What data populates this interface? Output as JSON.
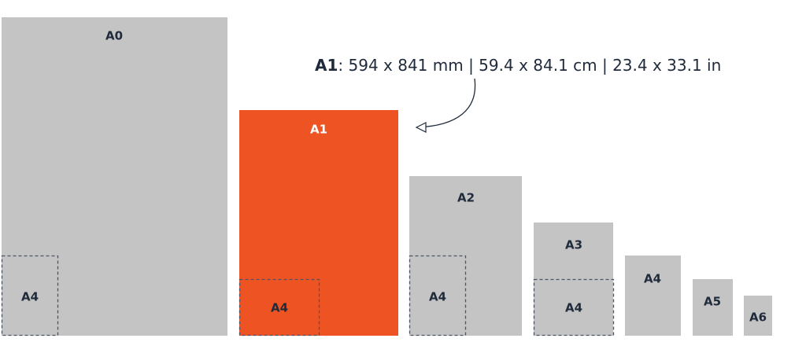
{
  "sheets": [
    {
      "label": "A0"
    },
    {
      "label": "A1"
    },
    {
      "label": "A2"
    },
    {
      "label": "A3"
    },
    {
      "label": "A4"
    },
    {
      "label": "A5"
    },
    {
      "label": "A6"
    }
  ],
  "a4_overlays": [
    {
      "label": "A4"
    },
    {
      "label": "A4"
    },
    {
      "label": "A4"
    },
    {
      "label": "A4"
    }
  ],
  "annotation": {
    "size": "A1",
    "dimensions": ": 594 x 841 mm | 59.4 x 84.1 cm | 23.4 x 33.1 in"
  }
}
